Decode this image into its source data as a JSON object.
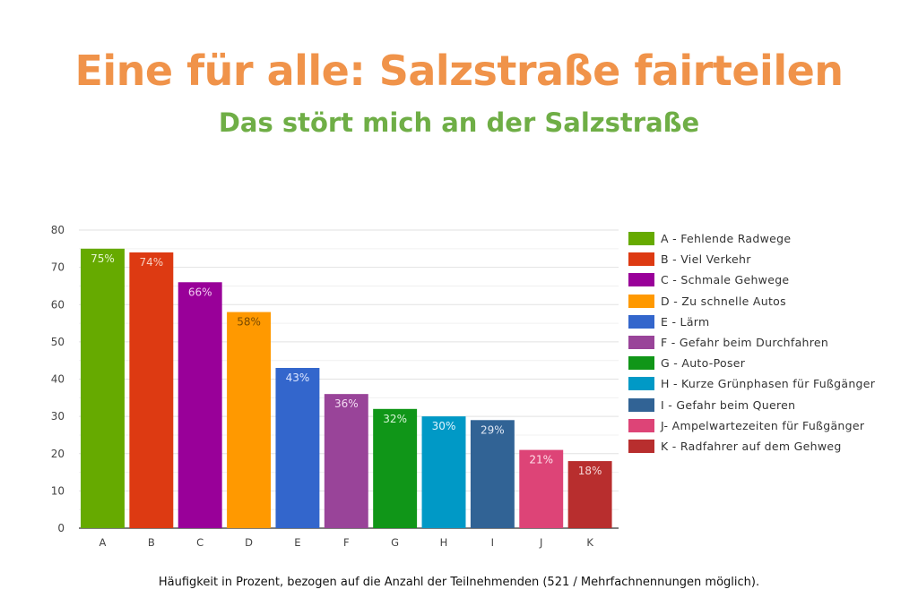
{
  "title": "Eine für alle: Salzstraße fairteilen",
  "subtitle": "Das stört mich an der Salzstraße",
  "caption": "Häufigkeit in Prozent, bezogen auf die Anzahl der Teilnehmenden (521 / Mehrfachnennungen möglich).",
  "chart_data": {
    "type": "bar",
    "categories": [
      "A",
      "B",
      "C",
      "D",
      "E",
      "F",
      "G",
      "H",
      "I",
      "J",
      "K"
    ],
    "values": [
      75,
      74,
      66,
      58,
      43,
      36,
      32,
      30,
      29,
      21,
      18
    ],
    "data_labels": [
      "75%",
      "74%",
      "66%",
      "58%",
      "43%",
      "36%",
      "32%",
      "30%",
      "29%",
      "21%",
      "18%"
    ],
    "colors": [
      "#66aa00",
      "#dd3a12",
      "#990099",
      "#ff9900",
      "#3366cc",
      "#994499",
      "#109618",
      "#0099c6",
      "#316395",
      "#dd4477",
      "#b82e2e"
    ],
    "label_colors": [
      "#e8f5d0",
      "#f8d0c0",
      "#f0c8f0",
      "#7a4a00",
      "#dde6ff",
      "#f3dcf3",
      "#d6f5d6",
      "#dff5ff",
      "#e0e8f5",
      "#ffe0ea",
      "#f5d6d6"
    ],
    "legend": [
      "A - Fehlende Radwege",
      "B - Viel Verkehr",
      "C - Schmale Gehwege",
      "D - Zu schnelle Autos",
      "E - Lärm",
      "F - Gefahr beim Durchfahren",
      "G - Auto-Poser",
      "H - Kurze Grünphasen für Fußgänger",
      "I - Gefahr beim Queren",
      "J- Ampelwartezeiten für Fußgänger",
      "K - Radfahrer auf dem Gehweg"
    ],
    "legend_position": "right",
    "yticks": [
      "0",
      "10",
      "20",
      "30",
      "40",
      "50",
      "60",
      "70",
      "80"
    ],
    "ylim": [
      0,
      80
    ],
    "grid": true,
    "xlabel": "",
    "ylabel": ""
  }
}
